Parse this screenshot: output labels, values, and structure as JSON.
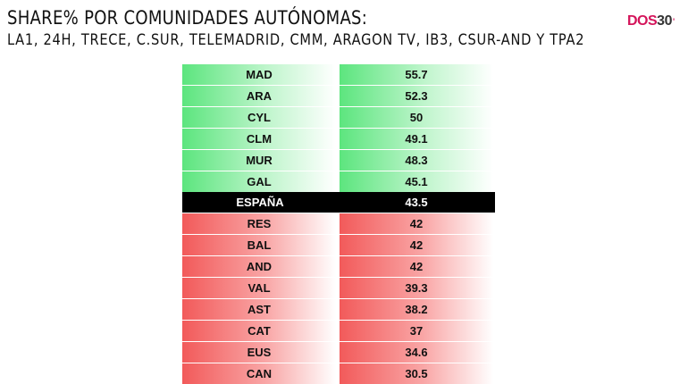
{
  "title": "SHARE% POR COMUNIDADES AUTÓNOMAS:",
  "subtitle": "LA1, 24H, TRECE, C.SUR, TELEMADRID, CMM, ARAGON TV, IB3, CSUR-AND Y TPA2",
  "logo": {
    "dos": "DOS",
    "num": "30",
    "sup": "'"
  },
  "chart_data": {
    "type": "table",
    "reference_label": "ESPAÑA",
    "reference_value": 43.5,
    "categories": [
      "MAD",
      "ARA",
      "CYL",
      "CLM",
      "MUR",
      "GAL",
      "ESPAÑA",
      "RES",
      "BAL",
      "AND",
      "VAL",
      "AST",
      "CAT",
      "EUS",
      "CAN"
    ],
    "values": [
      55.7,
      52.3,
      50,
      49.1,
      48.3,
      45.1,
      43.5,
      42,
      42,
      42,
      39.3,
      38.2,
      37,
      34.6,
      30.5
    ],
    "rows": [
      {
        "name": "MAD",
        "value": "55.7",
        "status": "above"
      },
      {
        "name": "ARA",
        "value": "52.3",
        "status": "above"
      },
      {
        "name": "CYL",
        "value": "50",
        "status": "above"
      },
      {
        "name": "CLM",
        "value": "49.1",
        "status": "above"
      },
      {
        "name": "MUR",
        "value": "48.3",
        "status": "above"
      },
      {
        "name": "GAL",
        "value": "45.1",
        "status": "above"
      },
      {
        "name": "ESPAÑA",
        "value": "43.5",
        "status": "reference"
      },
      {
        "name": "RES",
        "value": "42",
        "status": "below"
      },
      {
        "name": "BAL",
        "value": "42",
        "status": "below"
      },
      {
        "name": "AND",
        "value": "42",
        "status": "below"
      },
      {
        "name": "VAL",
        "value": "39.3",
        "status": "below"
      },
      {
        "name": "AST",
        "value": "38.2",
        "status": "below"
      },
      {
        "name": "CAT",
        "value": "37",
        "status": "below"
      },
      {
        "name": "EUS",
        "value": "34.6",
        "status": "below"
      },
      {
        "name": "CAN",
        "value": "30.5",
        "status": "below"
      }
    ],
    "colors": {
      "above": "#5ce57e",
      "below": "#f25a5a",
      "reference": "#000000"
    }
  }
}
